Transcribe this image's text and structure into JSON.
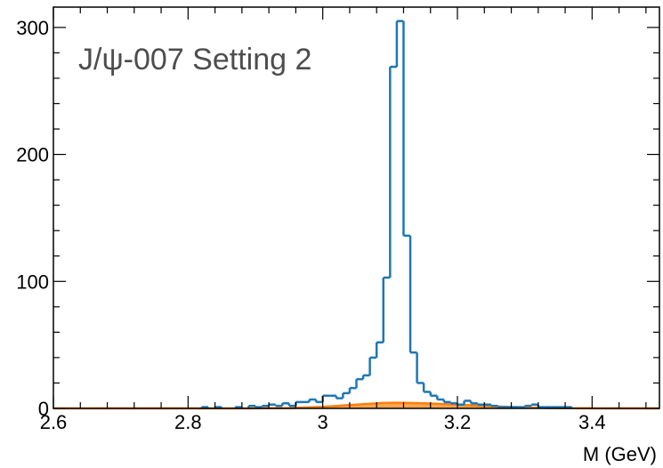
{
  "chart_data": {
    "type": "line",
    "title": "",
    "annotation": "J/ψ-007 Setting 2",
    "xlabel": "M (GeV)",
    "ylabel": "",
    "xlim": [
      2.6,
      3.5
    ],
    "ylim": [
      0,
      316
    ],
    "x_ticks": [
      {
        "value": 2.6,
        "label": "2.6"
      },
      {
        "value": 2.8,
        "label": "2.8"
      },
      {
        "value": 3.0,
        "label": "3"
      },
      {
        "value": 3.2,
        "label": "3.2"
      },
      {
        "value": 3.4,
        "label": "3.4"
      }
    ],
    "y_ticks": [
      {
        "value": 0,
        "label": "0"
      },
      {
        "value": 100,
        "label": "100"
      },
      {
        "value": 200,
        "label": "200"
      },
      {
        "value": 300,
        "label": "300"
      }
    ],
    "grid": false,
    "bin_width": 0.01,
    "series": [
      {
        "style": "step",
        "color": "#1f77b4",
        "bins": [
          {
            "x": 2.82,
            "y": 1
          },
          {
            "x": 2.84,
            "y": 1
          },
          {
            "x": 2.87,
            "y": 1
          },
          {
            "x": 2.89,
            "y": 2
          },
          {
            "x": 2.9,
            "y": 1
          },
          {
            "x": 2.91,
            "y": 2
          },
          {
            "x": 2.92,
            "y": 3
          },
          {
            "x": 2.93,
            "y": 2
          },
          {
            "x": 2.94,
            "y": 4
          },
          {
            "x": 2.95,
            "y": 2
          },
          {
            "x": 2.96,
            "y": 5
          },
          {
            "x": 2.97,
            "y": 5
          },
          {
            "x": 2.98,
            "y": 7
          },
          {
            "x": 2.99,
            "y": 5
          },
          {
            "x": 3.0,
            "y": 10
          },
          {
            "x": 3.01,
            "y": 10
          },
          {
            "x": 3.02,
            "y": 8
          },
          {
            "x": 3.03,
            "y": 12
          },
          {
            "x": 3.04,
            "y": 16
          },
          {
            "x": 3.05,
            "y": 23
          },
          {
            "x": 3.06,
            "y": 26
          },
          {
            "x": 3.07,
            "y": 40
          },
          {
            "x": 3.08,
            "y": 52
          },
          {
            "x": 3.09,
            "y": 103
          },
          {
            "x": 3.1,
            "y": 269
          },
          {
            "x": 3.11,
            "y": 305
          },
          {
            "x": 3.12,
            "y": 136
          },
          {
            "x": 3.13,
            "y": 44
          },
          {
            "x": 3.14,
            "y": 20
          },
          {
            "x": 3.15,
            "y": 13
          },
          {
            "x": 3.16,
            "y": 10
          },
          {
            "x": 3.17,
            "y": 7
          },
          {
            "x": 3.18,
            "y": 5
          },
          {
            "x": 3.19,
            "y": 4
          },
          {
            "x": 3.2,
            "y": 3
          },
          {
            "x": 3.21,
            "y": 6
          },
          {
            "x": 3.22,
            "y": 4
          },
          {
            "x": 3.23,
            "y": 3
          },
          {
            "x": 3.24,
            "y": 3
          },
          {
            "x": 3.25,
            "y": 2
          },
          {
            "x": 3.26,
            "y": 1
          },
          {
            "x": 3.27,
            "y": 1
          },
          {
            "x": 3.28,
            "y": 1
          },
          {
            "x": 3.29,
            "y": 1
          },
          {
            "x": 3.3,
            "y": 2
          },
          {
            "x": 3.31,
            "y": 3
          },
          {
            "x": 3.32,
            "y": 1
          },
          {
            "x": 3.33,
            "y": 1
          },
          {
            "x": 3.34,
            "y": 1
          },
          {
            "x": 3.35,
            "y": 1
          },
          {
            "x": 3.36,
            "y": 1
          }
        ]
      },
      {
        "style": "filled-area",
        "color": "#ff7f0e",
        "fill": "#ffa54f",
        "points": [
          {
            "x": 2.6,
            "y": 0
          },
          {
            "x": 2.88,
            "y": 0
          },
          {
            "x": 2.95,
            "y": 0.3
          },
          {
            "x": 3.0,
            "y": 1.2
          },
          {
            "x": 3.05,
            "y": 3
          },
          {
            "x": 3.09,
            "y": 4.3
          },
          {
            "x": 3.11,
            "y": 4.5
          },
          {
            "x": 3.15,
            "y": 4
          },
          {
            "x": 3.2,
            "y": 3
          },
          {
            "x": 3.25,
            "y": 1.7
          },
          {
            "x": 3.3,
            "y": 0.7
          },
          {
            "x": 3.36,
            "y": 0.2
          },
          {
            "x": 3.42,
            "y": 0
          },
          {
            "x": 3.5,
            "y": 0
          }
        ]
      }
    ]
  }
}
